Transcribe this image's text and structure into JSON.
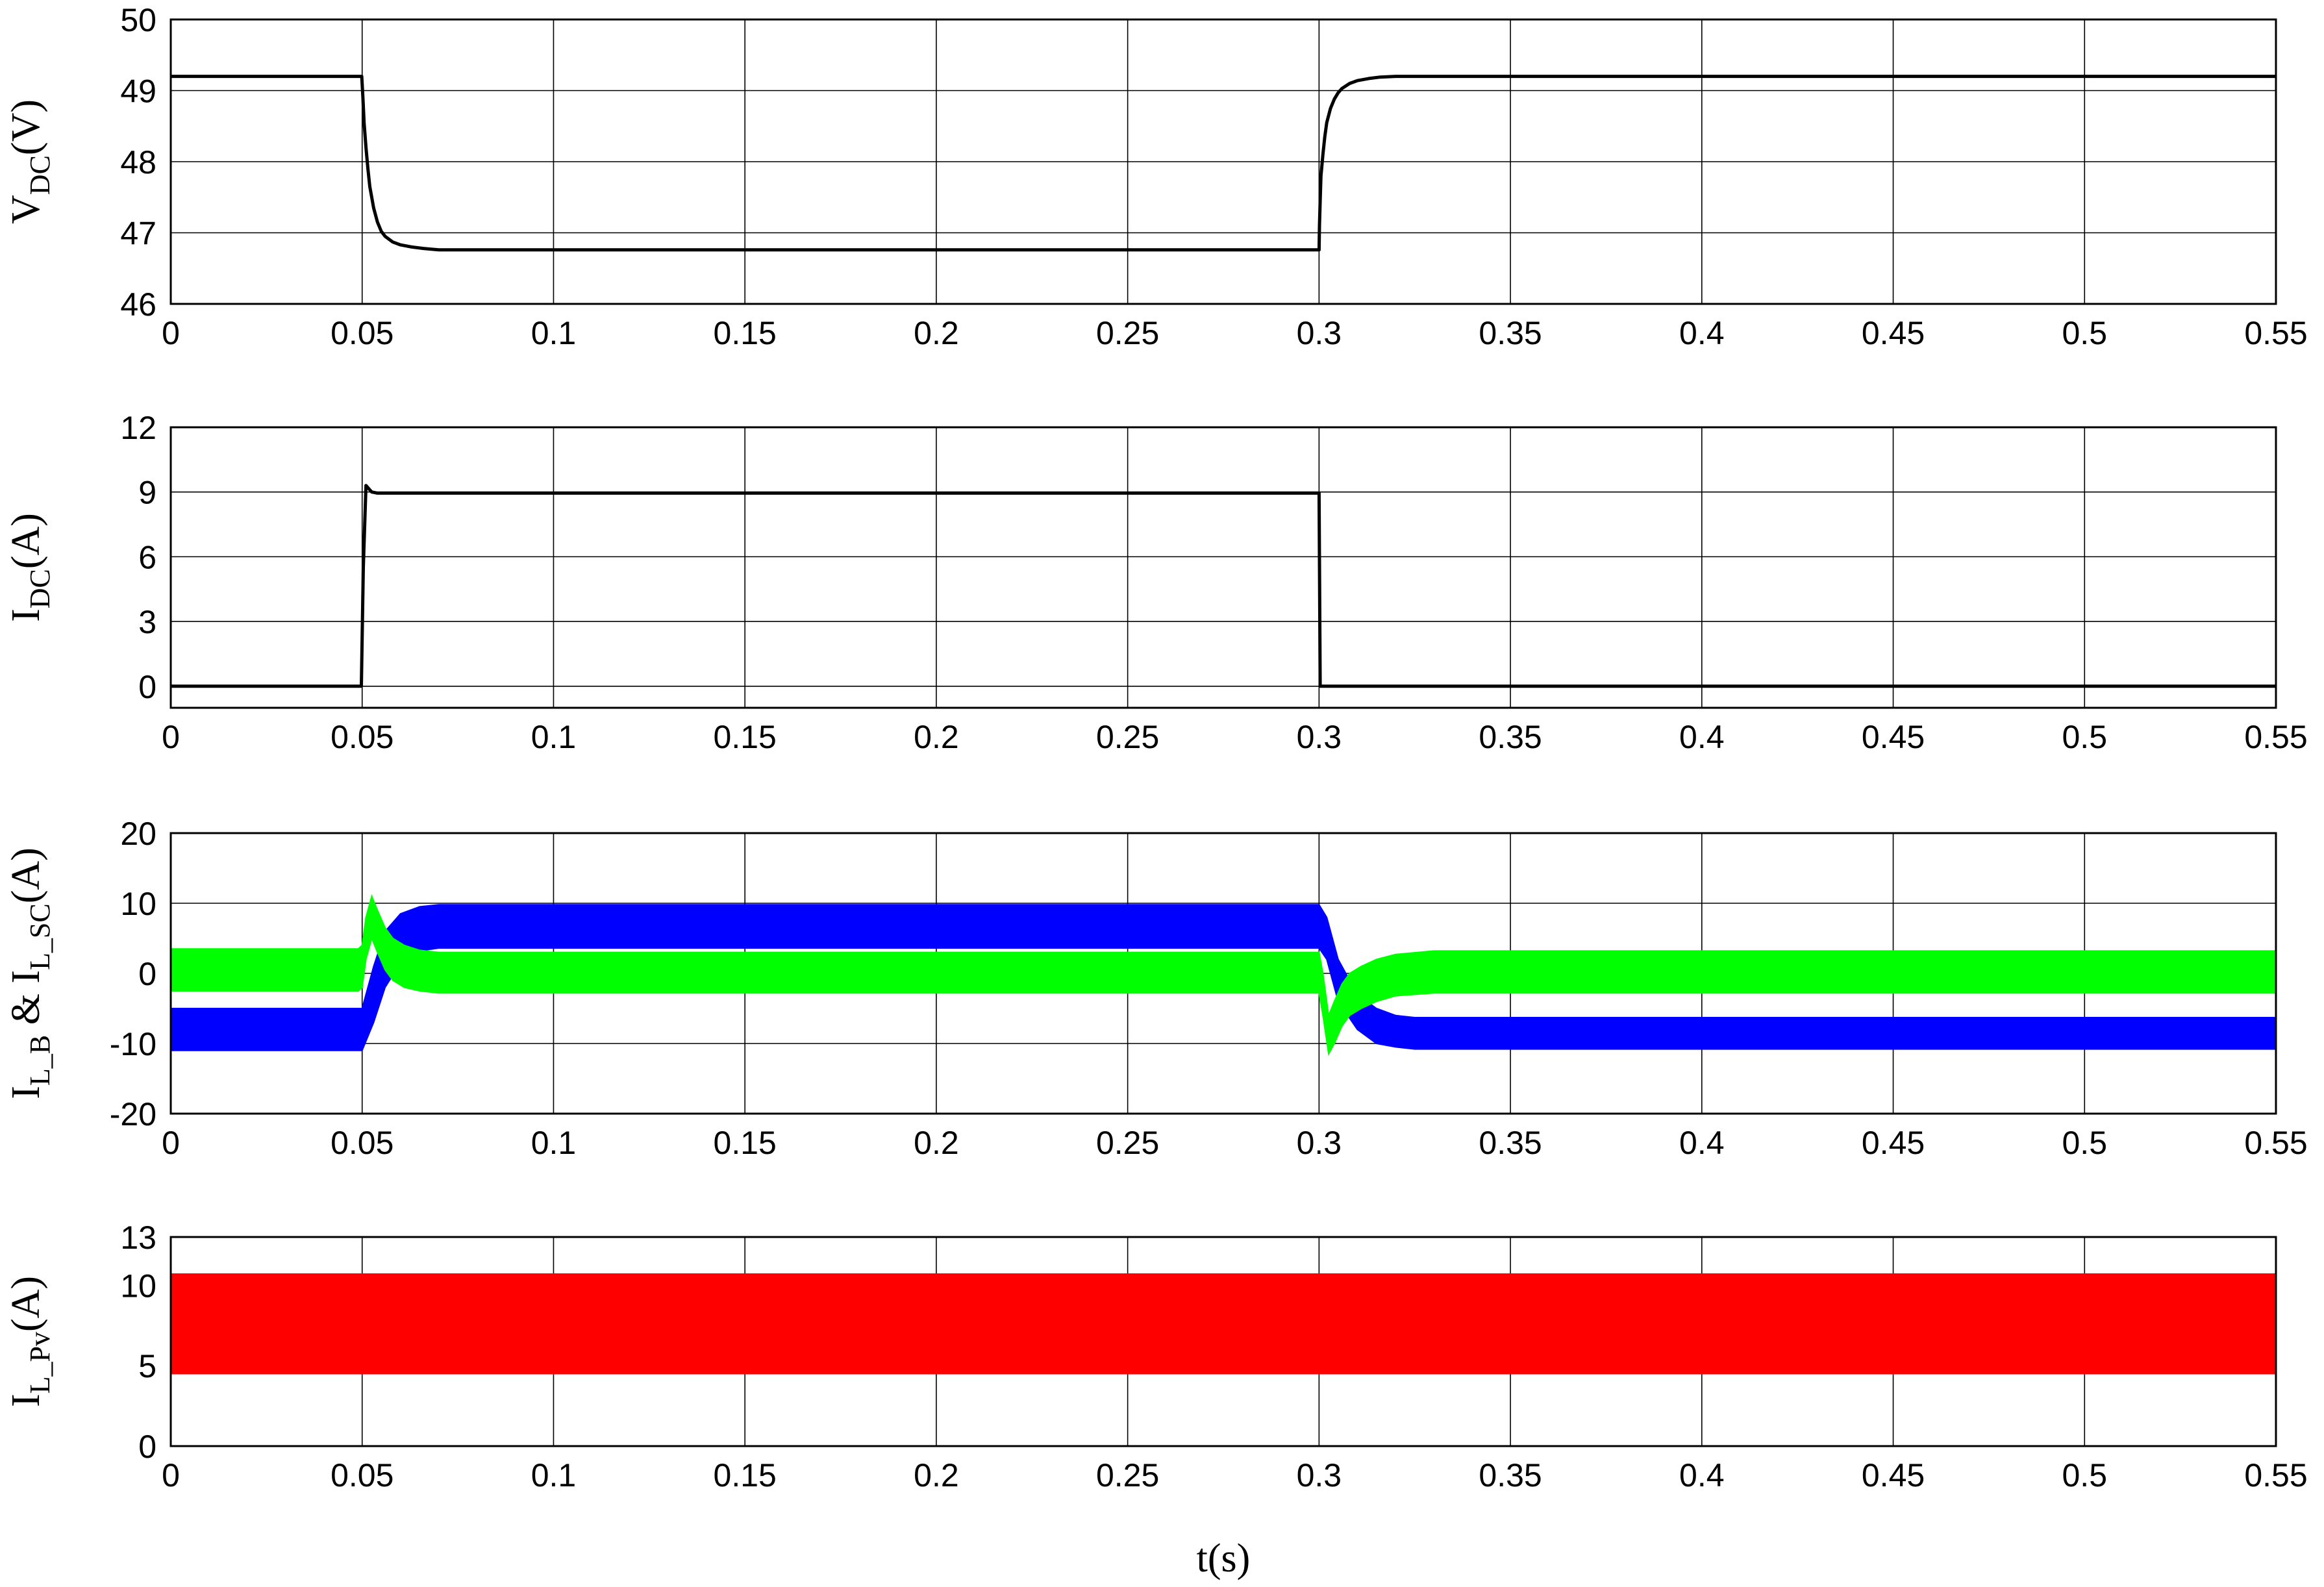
{
  "chart_data": [
    {
      "type": "line",
      "ylabel_main": "V",
      "ylabel_sub": "DC",
      "ylabel_unit": "(V)",
      "xlim": [
        0,
        0.55
      ],
      "ylim": [
        46,
        50
      ],
      "xticks": [
        "0",
        "0.05",
        "0.1",
        "0.15",
        "0.2",
        "0.25",
        "0.3",
        "0.35",
        "0.4",
        "0.45",
        "0.5",
        "0.55"
      ],
      "yticks": [
        "46",
        "47",
        "48",
        "49",
        "50"
      ],
      "grid": true,
      "series": [
        {
          "color": "#000000",
          "x": [
            0,
            0.0499,
            0.0502,
            0.0505,
            0.051,
            0.0515,
            0.052,
            0.053,
            0.054,
            0.055,
            0.056,
            0.058,
            0.06,
            0.063,
            0.066,
            0.07,
            0.08,
            0.3,
            0.3001,
            0.3003,
            0.3005,
            0.301,
            0.3015,
            0.302,
            0.303,
            0.304,
            0.305,
            0.306,
            0.308,
            0.31,
            0.313,
            0.316,
            0.32,
            0.55
          ],
          "y": [
            49.2,
            49.2,
            48.9,
            48.55,
            48.2,
            47.9,
            47.65,
            47.35,
            47.15,
            47.02,
            46.95,
            46.87,
            46.83,
            46.8,
            46.78,
            46.76,
            46.76,
            46.76,
            47.1,
            47.45,
            47.8,
            48.1,
            48.35,
            48.55,
            48.75,
            48.88,
            48.97,
            49.03,
            49.1,
            49.14,
            49.17,
            49.19,
            49.2,
            49.2
          ]
        }
      ]
    },
    {
      "type": "line",
      "ylabel_main": "I",
      "ylabel_sub": "DC",
      "ylabel_unit": "(A)",
      "xlim": [
        0,
        0.55
      ],
      "ylim": [
        -1,
        12
      ],
      "xticks": [
        "0",
        "0.05",
        "0.1",
        "0.15",
        "0.2",
        "0.25",
        "0.3",
        "0.35",
        "0.4",
        "0.45",
        "0.5",
        "0.55"
      ],
      "yticks": [
        "0",
        "3",
        "6",
        "9",
        "12"
      ],
      "ytick_values": [
        0,
        3,
        6,
        9,
        12
      ],
      "grid": true,
      "series": [
        {
          "color": "#000000",
          "x": [
            0,
            0.0498,
            0.0503,
            0.051,
            0.052,
            0.0525,
            0.054,
            0.3,
            0.3003,
            0.55
          ],
          "y": [
            0,
            0,
            5.5,
            9.3,
            9.1,
            9.0,
            8.95,
            8.95,
            0,
            0
          ]
        }
      ]
    },
    {
      "type": "area",
      "ylabel_main": "I",
      "ylabel_sub1": "L_B",
      "ylabel_mid": " & I",
      "ylabel_sub2": "L_SC",
      "ylabel_unit": "(A)",
      "xlim": [
        0,
        0.55
      ],
      "ylim": [
        -20,
        20
      ],
      "xticks": [
        "0",
        "0.05",
        "0.1",
        "0.15",
        "0.2",
        "0.25",
        "0.3",
        "0.35",
        "0.4",
        "0.45",
        "0.5",
        "0.55"
      ],
      "yticks": [
        "-20",
        "-10",
        "0",
        "10",
        "20"
      ],
      "ytick_values": [
        -20,
        -10,
        0,
        10,
        20
      ],
      "grid": true,
      "series": [
        {
          "color": "#0000ff",
          "x": [
            0,
            0.049,
            0.05,
            0.053,
            0.056,
            0.06,
            0.065,
            0.07,
            0.3,
            0.302,
            0.305,
            0.31,
            0.315,
            0.32,
            0.325,
            0.55
          ],
          "upper": [
            -5,
            -5,
            -5,
            1,
            6,
            8.5,
            9.5,
            9.8,
            9.8,
            8,
            2,
            -3,
            -5,
            -6,
            -6.3,
            -6.3
          ],
          "lower": [
            -11,
            -11,
            -11,
            -7,
            -2,
            1.5,
            3.2,
            3.6,
            3.6,
            2,
            -4,
            -8,
            -10,
            -10.5,
            -10.8,
            -10.8
          ]
        },
        {
          "color": "#00ff00",
          "x": [
            0,
            0.049,
            0.05,
            0.051,
            0.0525,
            0.054,
            0.056,
            0.058,
            0.061,
            0.065,
            0.07,
            0.08,
            0.3,
            0.301,
            0.3025,
            0.304,
            0.306,
            0.308,
            0.311,
            0.315,
            0.32,
            0.33,
            0.55
          ],
          "upper": [
            3.5,
            3.5,
            4,
            8,
            11,
            9,
            6.5,
            5,
            4,
            3.3,
            3,
            3,
            3,
            0,
            -6,
            -4,
            -1.5,
            0,
            1,
            2,
            2.7,
            3.2,
            3.2
          ],
          "lower": [
            -2.5,
            -2.5,
            -2,
            2,
            5,
            3,
            0.5,
            -1,
            -2,
            -2.5,
            -2.8,
            -2.8,
            -2.8,
            -6,
            -11.5,
            -10,
            -7.5,
            -6,
            -5,
            -4,
            -3.2,
            -2.8,
            -2.8
          ]
        }
      ]
    },
    {
      "type": "area",
      "ylabel_main": "I",
      "ylabel_sub": "L_Pv",
      "ylabel_unit": "(A)",
      "xlim": [
        0,
        0.55
      ],
      "ylim": [
        0,
        13
      ],
      "xticks": [
        "0",
        "0.05",
        "0.1",
        "0.15",
        "0.2",
        "0.25",
        "0.3",
        "0.35",
        "0.4",
        "0.45",
        "0.5",
        "0.55"
      ],
      "yticks": [
        "0",
        "5",
        "10",
        "13"
      ],
      "ytick_values": [
        0,
        5,
        10,
        13
      ],
      "grid": true,
      "series": [
        {
          "color": "#ff0000",
          "x": [
            0,
            0.55
          ],
          "upper": [
            10.7,
            10.7
          ],
          "lower": [
            4.5,
            4.5
          ]
        }
      ]
    }
  ],
  "xlabel": "t(s)"
}
